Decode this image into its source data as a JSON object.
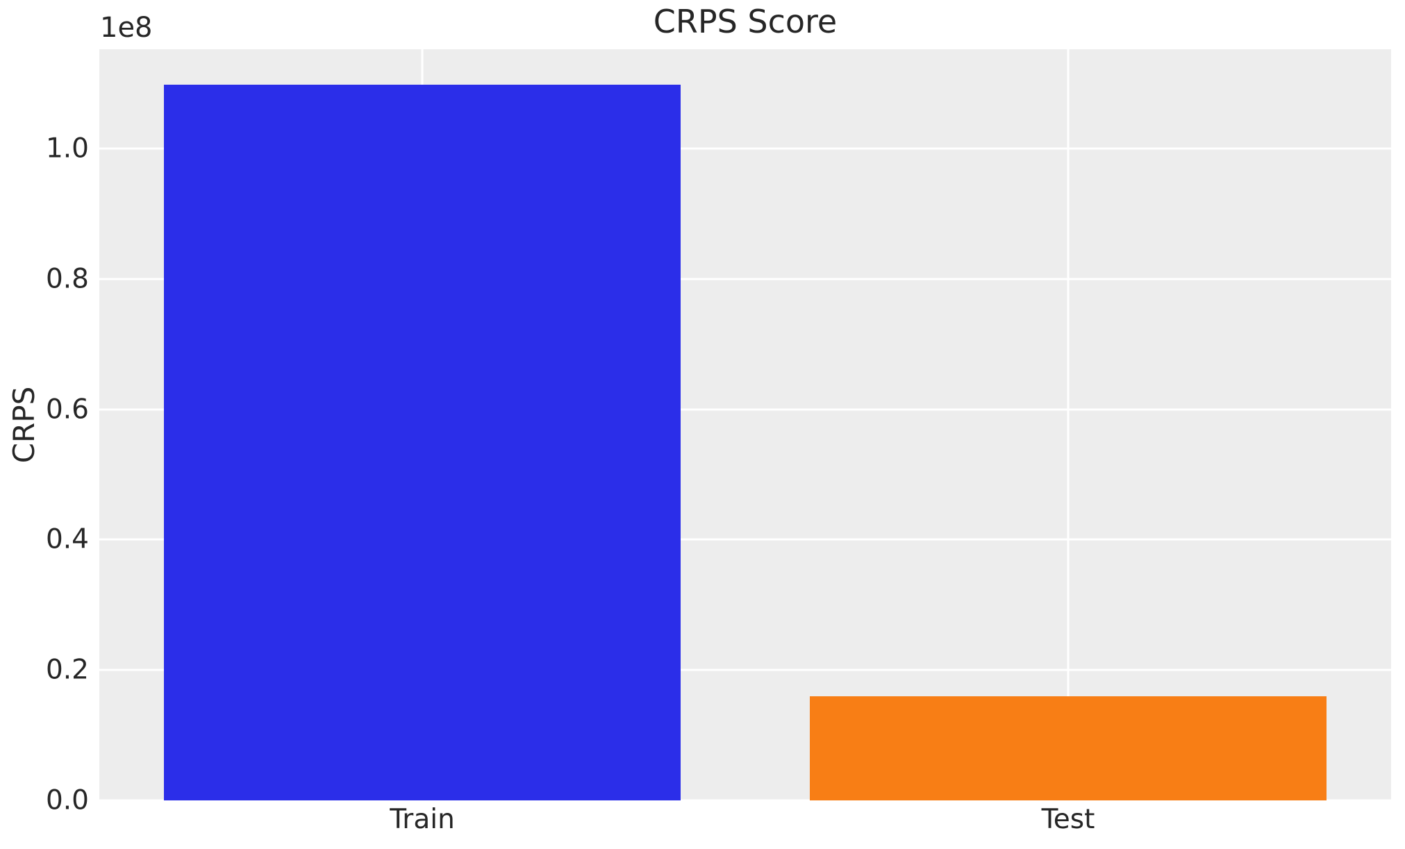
{
  "chart_data": {
    "type": "bar",
    "title": "CRPS Score",
    "xlabel": "",
    "ylabel": "CRPS",
    "offset_label": "1e8",
    "categories": [
      "Train",
      "Test"
    ],
    "values": [
      109800000,
      16000000
    ],
    "bar_colors": [
      "#2b2ee9",
      "#f87e15"
    ],
    "bar_width_frac": 0.8,
    "yticks": [
      0.0,
      0.2,
      0.4,
      0.6,
      0.8,
      1.0
    ],
    "ytick_labels": [
      "0.0",
      "0.2",
      "0.4",
      "0.6",
      "0.8",
      "1.0"
    ],
    "ytick_scale": 100000000,
    "ylim": [
      0,
      115250000
    ],
    "grid": true,
    "legend": false,
    "plot_background": "#ededed",
    "grid_color": "#ffffff",
    "text_color": "#262626",
    "page_background": "#ffffff"
  }
}
